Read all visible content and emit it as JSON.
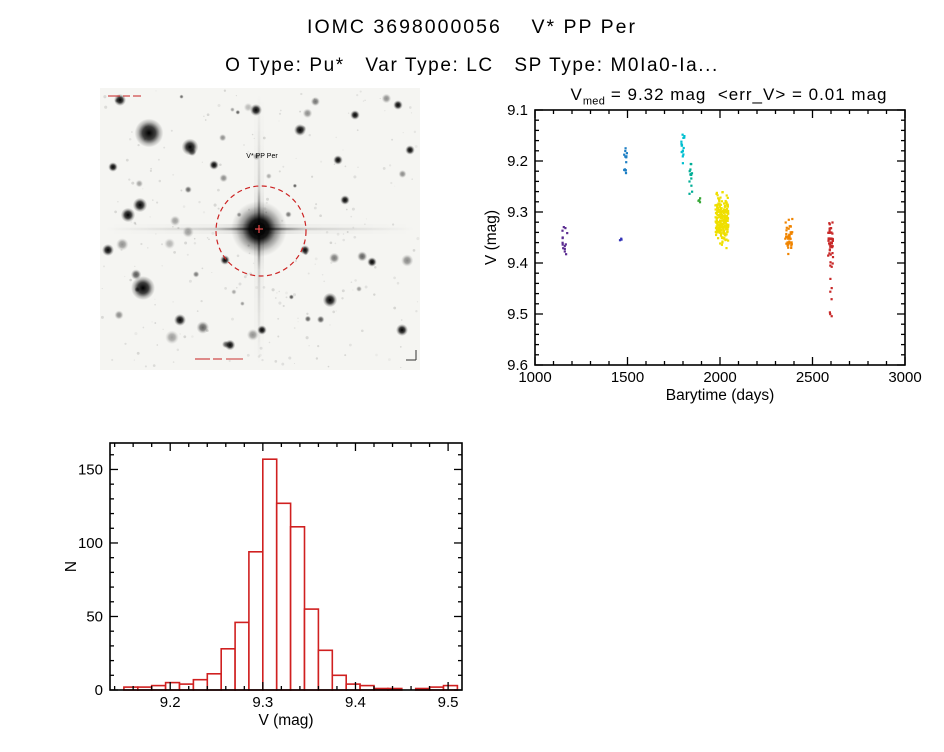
{
  "page": {
    "title": "IOMC 3698000056    V* PP Per",
    "subtitle": "O Type: Pu*   Var Type: LC   SP Type: M0Ia0-Ia..."
  },
  "finding_chart": {
    "object_label": "V* PP Per",
    "marker_color": "#cc2222",
    "target_center": [
      159,
      141
    ],
    "circle_radius": 45,
    "bright_stars": [
      [
        20,
        12,
        2.5
      ],
      [
        49,
        45,
        6
      ],
      [
        90,
        59,
        3.5
      ],
      [
        156,
        22,
        2.5
      ],
      [
        114,
        77,
        2
      ],
      [
        200,
        42,
        2.5
      ],
      [
        255,
        27,
        2
      ],
      [
        298,
        17,
        2
      ],
      [
        13,
        79,
        2
      ],
      [
        28,
        127,
        3
      ],
      [
        40,
        117,
        3
      ],
      [
        43,
        200,
        5
      ],
      [
        8,
        162,
        2.5
      ],
      [
        80,
        232,
        2.5
      ],
      [
        130,
        257,
        2.2
      ],
      [
        162,
        242,
        2
      ],
      [
        230,
        212,
        3
      ],
      [
        272,
        174,
        2
      ],
      [
        302,
        242,
        2.5
      ],
      [
        310,
        62,
        2
      ],
      [
        245,
        112,
        2
      ],
      [
        205,
        162,
        2
      ],
      [
        125,
        172,
        2
      ],
      [
        238,
        72,
        2
      ]
    ]
  },
  "chart_data": [
    {
      "id": "lightcurve",
      "type": "scatter",
      "title_parts": {
        "base": "V",
        "sub": "med",
        "rest": " = 9.32 mag  <err_V> = 0.01 mag"
      },
      "xlabel": "Barytime (days)",
      "ylabel": "V (mag)",
      "xlim": [
        1000,
        3000
      ],
      "xticks": [
        1000,
        1500,
        2000,
        2500,
        3000
      ],
      "x_minor_step": 100,
      "y_top": 9.1,
      "y_bottom": 9.6,
      "yticks": [
        9.1,
        9.2,
        9.3,
        9.4,
        9.5,
        9.6
      ],
      "y_minor_step": 0.02,
      "y_axis_note": "magnitude axis, brighter (smaller mag) at top",
      "clusters": [
        {
          "t": 1165,
          "t_spread": 35,
          "v_min": 9.325,
          "v_max": 9.385,
          "n": 14,
          "color": "#5c2d91"
        },
        {
          "t": 1463,
          "t_spread": 10,
          "v_min": 9.345,
          "v_max": 9.358,
          "n": 3,
          "color": "#3434b8"
        },
        {
          "t": 1490,
          "t_spread": 16,
          "v_min": 9.175,
          "v_max": 9.225,
          "n": 14,
          "color": "#1e7fc4"
        },
        {
          "t": 1800,
          "t_spread": 18,
          "v_min": 9.148,
          "v_max": 9.205,
          "n": 16,
          "color": "#00bfd0"
        },
        {
          "t": 1842,
          "t_spread": 16,
          "v_min": 9.205,
          "v_max": 9.265,
          "n": 14,
          "color": "#00ad96"
        },
        {
          "t": 1888,
          "t_spread": 10,
          "v_min": 9.268,
          "v_max": 9.292,
          "n": 4,
          "color": "#38a838"
        },
        {
          "t": 2010,
          "t_spread": 70,
          "v_min": 9.245,
          "v_max": 9.385,
          "n": 210,
          "color": "#efdf00",
          "gauss": true
        },
        {
          "t": 2372,
          "t_spread": 38,
          "v_min": 9.298,
          "v_max": 9.398,
          "n": 42,
          "color": "#f08400",
          "gauss": true
        },
        {
          "t": 2598,
          "t_spread": 26,
          "v_min": 9.298,
          "v_max": 9.42,
          "n": 48,
          "color": "#c82828",
          "gauss": true
        },
        {
          "t": 2600,
          "t_spread": 14,
          "v_min": 9.43,
          "v_max": 9.53,
          "n": 7,
          "color": "#c82828"
        }
      ]
    },
    {
      "id": "histogram",
      "type": "bar",
      "xlabel": "V (mag)",
      "ylabel": "N",
      "xlim": [
        9.135,
        9.515
      ],
      "xticks": [
        9.2,
        9.3,
        9.4,
        9.5
      ],
      "x_minor_step": 0.02,
      "ylim": [
        0,
        168
      ],
      "yticks": [
        0,
        50,
        100,
        150
      ],
      "y_minor_step": 10,
      "bin_start": 9.15,
      "bin_width": 0.015,
      "counts": [
        2,
        2,
        3,
        5,
        4,
        7,
        11,
        28,
        46,
        94,
        157,
        127,
        111,
        55,
        27,
        10,
        4,
        3,
        1,
        1,
        0,
        1,
        2,
        3
      ],
      "bar_color": "#d02020"
    }
  ]
}
